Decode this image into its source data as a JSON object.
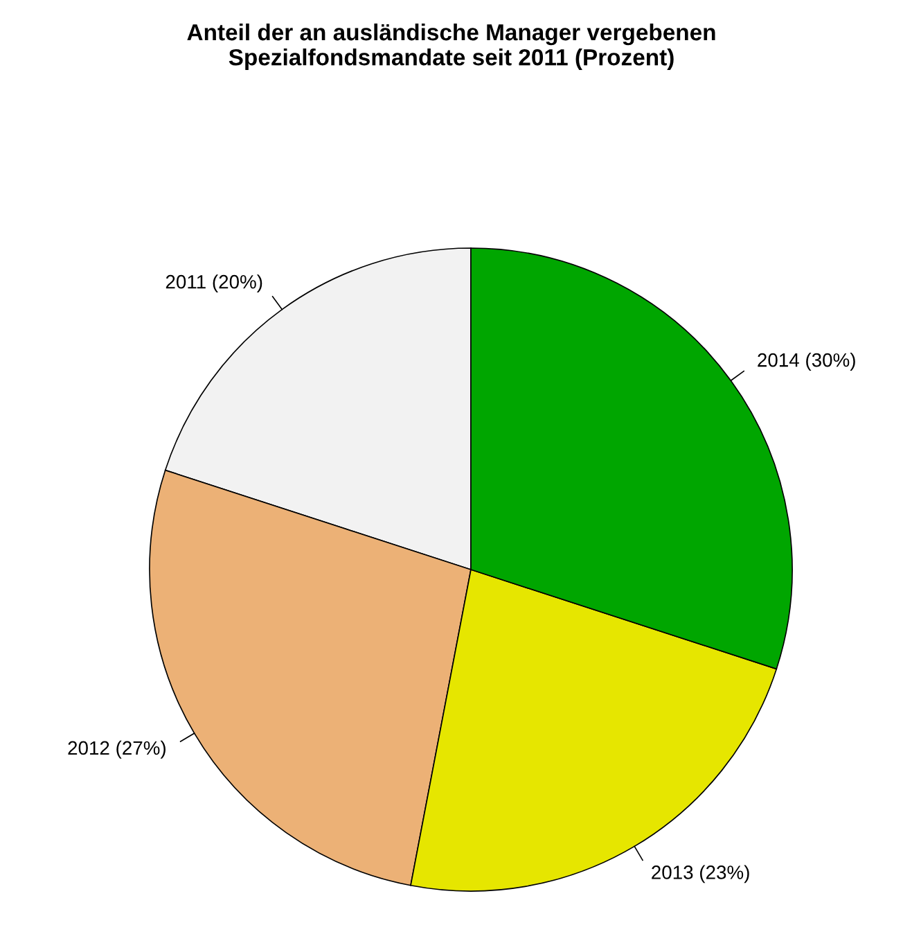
{
  "chart_data": {
    "type": "pie",
    "title": "Anteil der an ausländische Manager vergebenen\nSpezialfondsmandate seit 2011 (Prozent)",
    "categories": [
      "2011 (20%)",
      "2012 (27%)",
      "2013 (23%)",
      "2014 (30%)"
    ],
    "values": [
      20,
      27,
      23,
      30
    ],
    "colors": [
      "#f2f2f2",
      "#ecb176",
      "#e6e600",
      "#00a600"
    ],
    "legend": false
  }
}
